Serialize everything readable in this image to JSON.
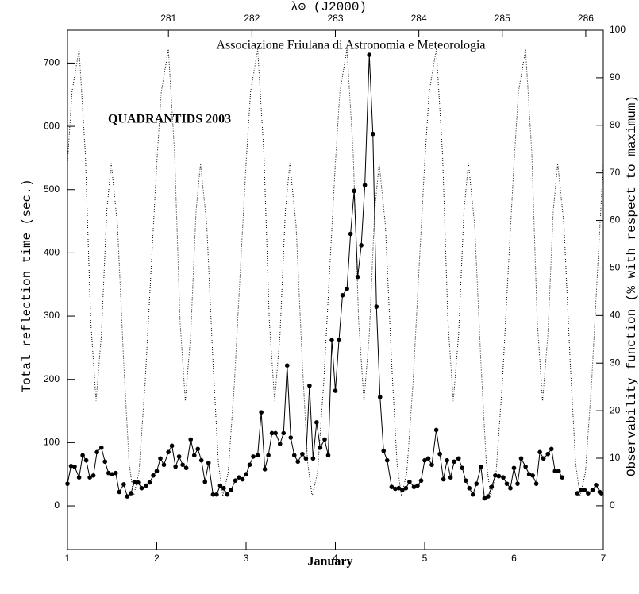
{
  "chart_data": {
    "type": "line",
    "title": "Associazione Friulana di Astronomia e Meteorologia",
    "subtitle": "QUADRANTIDS 2003",
    "xlabel": "January",
    "ylabel": "Total reflection time (sec.)",
    "y2label": "Observability function (% with respect to maximum)",
    "x2label": "λ⊙ (J2000)",
    "xlim": [
      1,
      7
    ],
    "xticks": [
      1,
      2,
      3,
      4,
      5,
      6,
      7
    ],
    "ylim": [
      -69,
      752
    ],
    "yticks": [
      0,
      100,
      200,
      300,
      400,
      500,
      600,
      700
    ],
    "y2lim": [
      -9.2,
      100
    ],
    "y2ticks": [
      0,
      10,
      20,
      30,
      40,
      50,
      60,
      70,
      80,
      90,
      100
    ],
    "x2lim": [
      279.79,
      286.21
    ],
    "x2ticks": [
      281,
      282,
      283,
      284,
      285,
      286
    ],
    "series": [
      {
        "color": "#000000",
        "marker": "circle",
        "linestyle": "solid",
        "axis": "y",
        "x": [
          1,
          1.04,
          1.08,
          1.13,
          1.17,
          1.21,
          1.25,
          1.29,
          1.33,
          1.38,
          1.42,
          1.46,
          1.5,
          1.54,
          1.58,
          1.63,
          1.67,
          1.71,
          1.75,
          1.79,
          1.83,
          1.88,
          1.92,
          1.96,
          2,
          2.04,
          2.08,
          2.13,
          2.17,
          2.21,
          2.25,
          2.29,
          2.33,
          2.38,
          2.42,
          2.46,
          2.5,
          2.54,
          2.58,
          2.63,
          2.67,
          2.71,
          2.75,
          2.79,
          2.83,
          2.88,
          2.92,
          2.96,
          3,
          3.04,
          3.08,
          3.13,
          3.17,
          3.21,
          3.25,
          3.29,
          3.33,
          3.38,
          3.42,
          3.46,
          3.5,
          3.54,
          3.58,
          3.63,
          3.67,
          3.71,
          3.75,
          3.79,
          3.83,
          3.88,
          3.92,
          3.96,
          4,
          4.04,
          4.08,
          4.13,
          4.17,
          4.21,
          4.25,
          4.29,
          4.33,
          4.38,
          4.42,
          4.46,
          4.5,
          4.54,
          4.58,
          4.63,
          4.67,
          4.71,
          4.75,
          4.79,
          4.83,
          4.88,
          4.92,
          4.96,
          5,
          5.04,
          5.08,
          5.13,
          5.17,
          5.21,
          5.25,
          5.29,
          5.33,
          5.38,
          5.42,
          5.46,
          5.5,
          5.54,
          5.58,
          5.63,
          5.67,
          5.71,
          5.75,
          5.79,
          5.83,
          5.88,
          5.92,
          5.96,
          6,
          6.04,
          6.08,
          6.13,
          6.17,
          6.21,
          6.25,
          6.29,
          6.33,
          6.38,
          6.42,
          6.46,
          6.5,
          6.54,
          6.63,
          6.71,
          6.75,
          6.79,
          6.83,
          6.88,
          6.92,
          6.96,
          6.98
        ],
        "values": [
          35,
          63,
          62,
          45,
          80,
          72,
          45,
          48,
          85,
          92,
          70,
          52,
          50,
          52,
          22,
          34,
          15,
          20,
          38,
          37,
          28,
          32,
          37,
          48,
          55,
          75,
          65,
          85,
          95,
          62,
          78,
          65,
          60,
          105,
          80,
          90,
          72,
          38,
          68,
          18,
          18,
          32,
          28,
          18,
          25,
          40,
          45,
          42,
          50,
          65,
          78,
          80,
          148,
          58,
          80,
          115,
          115,
          98,
          115,
          222,
          108,
          80,
          70,
          82,
          75,
          190,
          75,
          132,
          92,
          105,
          80,
          262,
          182,
          262,
          333,
          343,
          430,
          498,
          362,
          412,
          507,
          713,
          588,
          315,
          172,
          87,
          72,
          30,
          27,
          28,
          25,
          28,
          38,
          30,
          32,
          40,
          72,
          75,
          65,
          120,
          82,
          42,
          72,
          45,
          70,
          75,
          60,
          40,
          28,
          18,
          35,
          62,
          12,
          15,
          30,
          48,
          47,
          45,
          35,
          28,
          60,
          35,
          75,
          62,
          50,
          48,
          35,
          85,
          75,
          82,
          90,
          55,
          55,
          45,
          null,
          20,
          25,
          25,
          20,
          25,
          33,
          22,
          20
        ]
      },
      {
        "color": "#000000",
        "marker": "none",
        "linestyle": "dotted",
        "axis": "y2",
        "x": [
          1,
          1.05,
          1.13,
          1.2,
          1.26,
          1.32,
          1.38,
          1.44,
          1.49,
          1.56,
          1.63,
          1.69,
          1.74,
          1.8,
          1.87,
          1.94,
          2,
          2.05,
          2.13,
          2.2,
          2.26,
          2.32,
          2.38,
          2.44,
          2.49,
          2.56,
          2.63,
          2.69,
          2.74,
          2.8,
          2.87,
          2.94,
          3,
          3.05,
          3.13,
          3.2,
          3.26,
          3.32,
          3.38,
          3.44,
          3.49,
          3.56,
          3.63,
          3.69,
          3.74,
          3.8,
          3.87,
          3.94,
          4,
          4.05,
          4.13,
          4.2,
          4.26,
          4.32,
          4.38,
          4.44,
          4.49,
          4.56,
          4.63,
          4.69,
          4.74,
          4.8,
          4.87,
          4.94,
          5,
          5.05,
          5.13,
          5.2,
          5.26,
          5.32,
          5.38,
          5.44,
          5.49,
          5.56,
          5.63,
          5.69,
          5.74,
          5.8,
          5.87,
          5.94,
          6,
          6.05,
          6.13,
          6.2,
          6.26,
          6.32,
          6.38,
          6.44,
          6.49,
          6.56,
          6.63,
          6.69,
          6.74,
          6.8,
          6.87,
          6.94,
          7
        ],
        "values": [
          72,
          87,
          96,
          74,
          39,
          22,
          36,
          62,
          72,
          59,
          30,
          9,
          2,
          7,
          26,
          51,
          72,
          87,
          96,
          74,
          39,
          22,
          36,
          62,
          72,
          59,
          30,
          9,
          2,
          7,
          26,
          51,
          72,
          87,
          96,
          74,
          39,
          22,
          36,
          62,
          72,
          59,
          30,
          9,
          2,
          7,
          26,
          51,
          72,
          87,
          96,
          74,
          39,
          22,
          36,
          62,
          72,
          59,
          30,
          9,
          2,
          7,
          26,
          51,
          72,
          87,
          96,
          74,
          39,
          22,
          36,
          62,
          72,
          59,
          30,
          9,
          2,
          7,
          26,
          51,
          72,
          87,
          96,
          74,
          39,
          22,
          36,
          62,
          72,
          59,
          30,
          9,
          2,
          7,
          26,
          51,
          72
        ]
      }
    ]
  }
}
